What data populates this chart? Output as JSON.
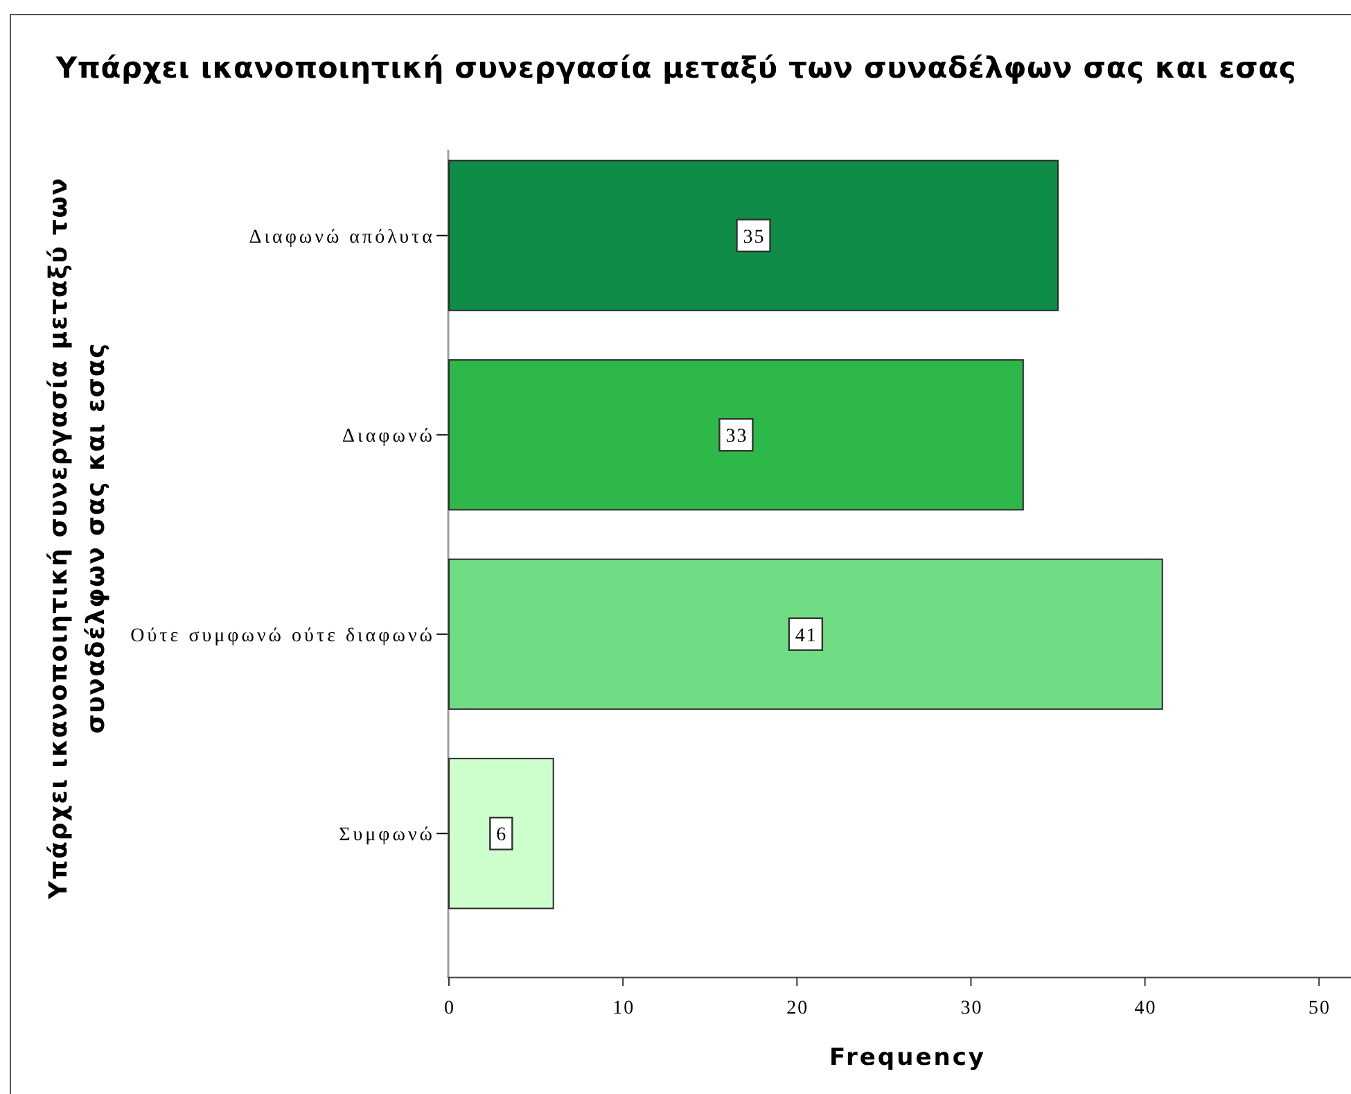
{
  "chart_data": {
    "type": "bar",
    "orientation": "horizontal",
    "title": "Υπάρχει ικανοποιητική συνεργασία μεταξύ των συναδέλφων σας και εσας",
    "xlabel": "Frequency",
    "ylabel": "Υπάρχει ικανοποιητική συνεργασία μεταξύ των συναδέλφων σας και εσας",
    "categories": [
      "Διαφωνώ απόλυτα",
      "Διαφωνώ",
      "Ούτε συμφωνώ ούτε διαφωνώ",
      "Συμφωνώ"
    ],
    "values": [
      35,
      33,
      41,
      6
    ],
    "colors": [
      "#0e8c48",
      "#2eb84a",
      "#70dc84",
      "#ccffcc"
    ],
    "xlim": [
      0,
      52
    ],
    "xticks": [
      0,
      10,
      20,
      30,
      40,
      50
    ],
    "grid": false,
    "data_labels": true
  }
}
